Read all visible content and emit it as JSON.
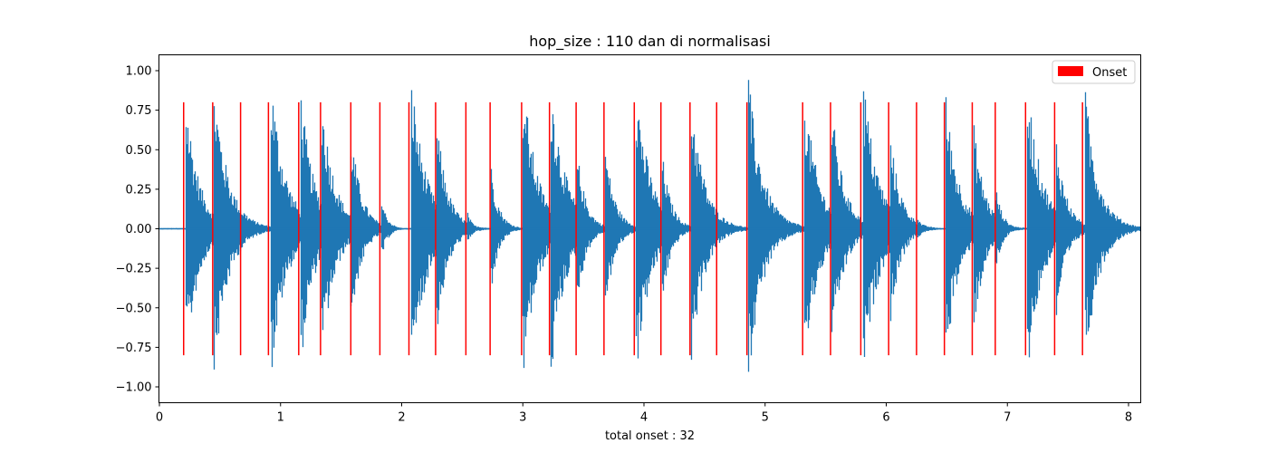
{
  "chart_data": {
    "type": "line",
    "title": "hop_size : 110 dan di normalisasi",
    "xlabel": "total onset : 32",
    "ylabel": "",
    "xlim": [
      0,
      8.1
    ],
    "ylim": [
      -1.1,
      1.1
    ],
    "xticks": [
      0,
      1,
      2,
      3,
      4,
      5,
      6,
      7,
      8
    ],
    "yticks": [
      -1.0,
      -0.75,
      -0.5,
      -0.25,
      0.0,
      0.25,
      0.5,
      0.75,
      1.0
    ],
    "ytick_labels": [
      "−1.00",
      "−0.75",
      "−0.50",
      "−0.25",
      "0.00",
      "0.25",
      "0.50",
      "0.75",
      "1.00"
    ],
    "grid": false,
    "legend": {
      "position": "top-right",
      "entries": [
        {
          "label": "Onset",
          "color": "#ff0000"
        }
      ]
    },
    "waveform": {
      "color": "#1f77b4",
      "duration": 8.1,
      "hits": [
        {
          "t": 0.22,
          "amp": 0.87
        },
        {
          "t": 0.45,
          "amp": 0.97
        },
        {
          "t": 0.68,
          "amp": 0.1
        },
        {
          "t": 0.92,
          "amp": 1.0
        },
        {
          "t": 1.17,
          "amp": 0.87
        },
        {
          "t": 1.34,
          "amp": 0.87
        },
        {
          "t": 1.58,
          "amp": 0.65
        },
        {
          "t": 1.83,
          "amp": 0.22
        },
        {
          "t": 2.08,
          "amp": 1.0
        },
        {
          "t": 2.29,
          "amp": 0.7
        },
        {
          "t": 2.54,
          "amp": 0.12
        },
        {
          "t": 2.74,
          "amp": 0.4
        },
        {
          "t": 3.0,
          "amp": 1.0
        },
        {
          "t": 3.23,
          "amp": 1.0
        },
        {
          "t": 3.45,
          "amp": 0.5
        },
        {
          "t": 3.68,
          "amp": 0.55
        },
        {
          "t": 3.93,
          "amp": 1.0
        },
        {
          "t": 4.15,
          "amp": 0.5
        },
        {
          "t": 4.39,
          "amp": 0.88
        },
        {
          "t": 4.61,
          "amp": 0.12
        },
        {
          "t": 4.86,
          "amp": 1.0
        },
        {
          "t": 5.32,
          "amp": 0.95
        },
        {
          "t": 5.55,
          "amp": 0.8
        },
        {
          "t": 5.81,
          "amp": 1.0
        },
        {
          "t": 6.03,
          "amp": 0.65
        },
        {
          "t": 6.26,
          "amp": 0.08
        },
        {
          "t": 6.49,
          "amp": 0.88
        },
        {
          "t": 6.72,
          "amp": 0.7
        },
        {
          "t": 6.9,
          "amp": 0.3
        },
        {
          "t": 7.16,
          "amp": 1.0
        },
        {
          "t": 7.4,
          "amp": 0.62
        },
        {
          "t": 7.64,
          "amp": 0.92
        }
      ]
    },
    "series": [
      {
        "name": "Onset",
        "color": "#ff0000",
        "ymin": -0.8,
        "ymax": 0.8,
        "x": [
          0.2,
          0.44,
          0.67,
          0.9,
          1.15,
          1.33,
          1.58,
          1.82,
          2.06,
          2.28,
          2.53,
          2.73,
          2.99,
          3.22,
          3.44,
          3.67,
          3.92,
          4.14,
          4.38,
          4.6,
          4.85,
          5.31,
          5.54,
          5.79,
          6.02,
          6.25,
          6.48,
          6.71,
          6.9,
          7.15,
          7.39,
          7.62
        ]
      }
    ]
  }
}
